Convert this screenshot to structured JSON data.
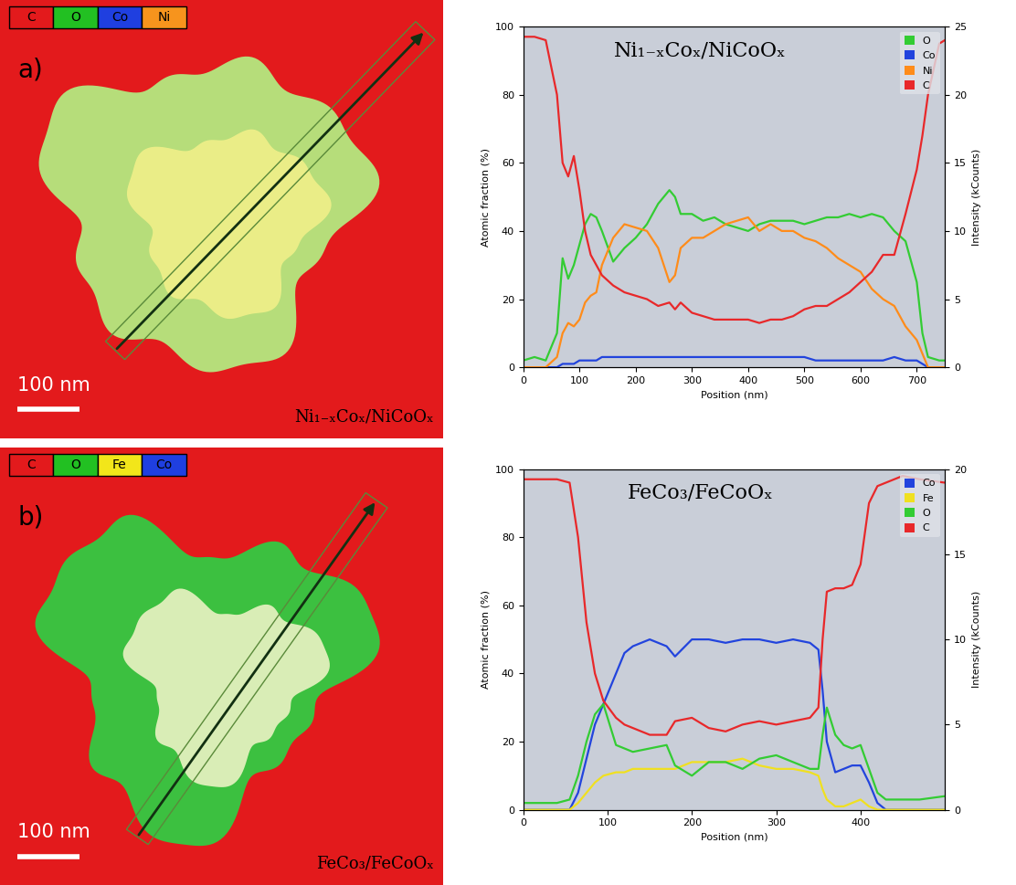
{
  "maps": [
    {
      "panel": "a)",
      "legend": [
        {
          "name": "C",
          "color": "#e31a1c"
        },
        {
          "name": "O",
          "color": "#22c022"
        },
        {
          "name": "Co",
          "color": "#1f3fe0"
        },
        {
          "name": "Ni",
          "color": "#f7941d"
        }
      ],
      "scale_bar": "100 nm",
      "label": "Ni₁₋ₓCoₓ/NiCoOₓ"
    },
    {
      "panel": "b)",
      "legend": [
        {
          "name": "C",
          "color": "#e31a1c"
        },
        {
          "name": "O",
          "color": "#22c022"
        },
        {
          "name": "Fe",
          "color": "#f2e61a"
        },
        {
          "name": "Co",
          "color": "#1f3fe0"
        }
      ],
      "scale_bar": "100 nm",
      "label": "FeCo₃/FeCoOₓ"
    }
  ],
  "chart_data": [
    {
      "type": "line",
      "title": "Ni₁₋ₓCoₓ/NiCoOₓ",
      "xlabel": "Position (nm)",
      "ylabel": "Atomic fraction (%)",
      "y2label": "Intensity (kCounts)",
      "x": [
        0,
        20,
        40,
        60,
        70,
        80,
        90,
        100,
        110,
        120,
        130,
        140,
        160,
        180,
        200,
        220,
        240,
        260,
        270,
        280,
        300,
        320,
        340,
        360,
        380,
        400,
        420,
        440,
        460,
        480,
        500,
        520,
        540,
        560,
        580,
        600,
        620,
        640,
        660,
        680,
        700,
        710,
        720,
        740,
        750
      ],
      "series": [
        {
          "name": "O",
          "color": "#33cc33",
          "values": [
            2,
            3,
            2,
            10,
            32,
            26,
            30,
            36,
            42,
            45,
            44,
            40,
            31,
            35,
            38,
            42,
            48,
            52,
            50,
            45,
            45,
            43,
            44,
            42,
            41,
            40,
            42,
            43,
            43,
            43,
            42,
            43,
            44,
            44,
            45,
            44,
            45,
            44,
            40,
            37,
            25,
            10,
            3,
            2,
            2
          ]
        },
        {
          "name": "Co",
          "color": "#2244dd",
          "values": [
            0,
            0,
            0,
            0,
            1,
            1,
            1,
            2,
            2,
            2,
            2,
            3,
            3,
            3,
            3,
            3,
            3,
            3,
            3,
            3,
            3,
            3,
            3,
            3,
            3,
            3,
            3,
            3,
            3,
            3,
            3,
            2,
            2,
            2,
            2,
            2,
            2,
            2,
            3,
            2,
            2,
            1,
            0,
            0,
            0
          ]
        },
        {
          "name": "Ni",
          "color": "#ff8c1a",
          "values": [
            0,
            0,
            0,
            3,
            10,
            13,
            12,
            14,
            19,
            21,
            22,
            30,
            38,
            42,
            41,
            40,
            35,
            25,
            27,
            35,
            38,
            38,
            40,
            42,
            43,
            44,
            40,
            42,
            40,
            40,
            38,
            37,
            35,
            32,
            30,
            28,
            23,
            20,
            18,
            12,
            8,
            4,
            0,
            0,
            0
          ]
        },
        {
          "name": "C",
          "color": "#e8282a",
          "values": [
            97,
            97,
            96,
            80,
            60,
            56,
            62,
            52,
            40,
            33,
            30,
            27,
            24,
            22,
            21,
            20,
            18,
            19,
            17,
            19,
            16,
            15,
            14,
            14,
            14,
            14,
            13,
            14,
            14,
            15,
            17,
            18,
            18,
            20,
            22,
            25,
            28,
            33,
            33,
            45,
            58,
            68,
            80,
            95,
            96
          ]
        }
      ],
      "xlim": [
        0,
        750
      ],
      "xticks": [
        0,
        100,
        200,
        300,
        400,
        500,
        600,
        700
      ],
      "ylim": [
        0,
        100
      ],
      "yticks": [
        0,
        20,
        40,
        60,
        80,
        100
      ],
      "y2lim": [
        0,
        25
      ],
      "y2ticks": [
        0,
        5,
        10,
        15,
        20,
        25
      ],
      "legend": "upper right"
    },
    {
      "type": "line",
      "title": "FeCo₃/FeCoOₓ",
      "xlabel": "Position (nm)",
      "ylabel": "Atomic fraction (%)",
      "y2label": "Intensity (kCounts)",
      "x": [
        0,
        40,
        55,
        65,
        75,
        85,
        95,
        110,
        120,
        130,
        150,
        170,
        180,
        200,
        220,
        240,
        260,
        280,
        300,
        320,
        340,
        350,
        355,
        360,
        370,
        380,
        390,
        400,
        410,
        420,
        430,
        450,
        470,
        500
      ],
      "series": [
        {
          "name": "Co",
          "color": "#2244dd",
          "values": [
            0,
            0,
            0,
            5,
            15,
            25,
            31,
            40,
            46,
            48,
            50,
            48,
            45,
            50,
            50,
            49,
            50,
            50,
            49,
            50,
            49,
            47,
            35,
            20,
            11,
            12,
            13,
            13,
            8,
            2,
            0,
            0,
            0,
            0
          ]
        },
        {
          "name": "Fe",
          "color": "#f0e020",
          "values": [
            0,
            0,
            0,
            2,
            5,
            8,
            10,
            11,
            11,
            12,
            12,
            12,
            12,
            14,
            14,
            14,
            15,
            13,
            12,
            12,
            11,
            10,
            6,
            3,
            1,
            1,
            2,
            3,
            1,
            0,
            0,
            0,
            0,
            0
          ]
        },
        {
          "name": "O",
          "color": "#33cc33",
          "values": [
            2,
            2,
            3,
            10,
            20,
            28,
            31,
            19,
            18,
            17,
            18,
            19,
            13,
            10,
            14,
            14,
            12,
            15,
            16,
            14,
            12,
            12,
            22,
            30,
            22,
            19,
            18,
            19,
            12,
            5,
            3,
            3,
            3,
            4
          ]
        },
        {
          "name": "C",
          "color": "#e8282a",
          "values": [
            97,
            97,
            96,
            80,
            55,
            40,
            32,
            27,
            25,
            24,
            22,
            22,
            26,
            27,
            24,
            23,
            25,
            26,
            25,
            26,
            27,
            30,
            50,
            64,
            65,
            65,
            66,
            72,
            90,
            95,
            96,
            98,
            97,
            96
          ]
        }
      ],
      "xlim": [
        0,
        500
      ],
      "xticks": [
        0,
        100,
        200,
        300,
        400
      ],
      "ylim": [
        0,
        100
      ],
      "yticks": [
        0,
        20,
        40,
        60,
        80,
        100
      ],
      "y2lim": [
        0,
        20
      ],
      "y2ticks": [
        0,
        5,
        10,
        15,
        20
      ],
      "legend": "upper right"
    }
  ]
}
